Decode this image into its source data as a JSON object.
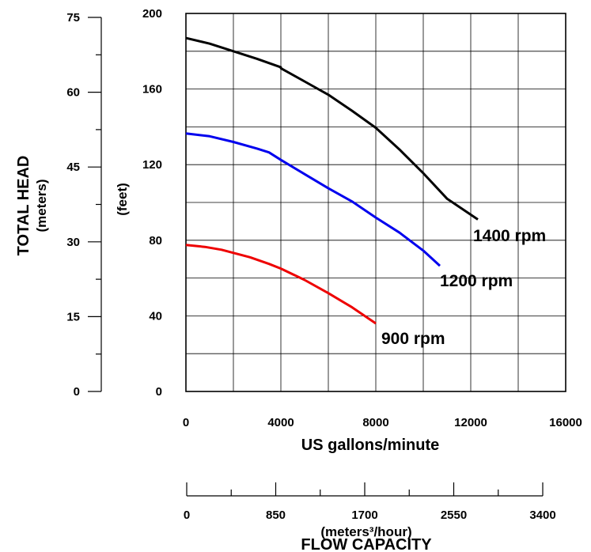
{
  "chart_data": {
    "type": "line",
    "title": "",
    "xlabel": "US gallons/minute",
    "xlim": [
      0,
      16000
    ],
    "x_ticks": [
      "0",
      "4000",
      "8000",
      "12000",
      "16000"
    ],
    "ylabel": "(feet)",
    "ylim": [
      0,
      200
    ],
    "y_ticks": [
      "0",
      "40",
      "80",
      "120",
      "160",
      "200"
    ],
    "secondary_y": {
      "label_line1": "TOTAL HEAD",
      "label_line2": "(meters)",
      "ticks": [
        "0",
        "15",
        "30",
        "45",
        "60",
        "75"
      ],
      "range": [
        0,
        75
      ]
    },
    "secondary_x": {
      "label_line1": "(meters³/hour)",
      "label_line2": "FLOW CAPACITY",
      "ticks": [
        "0",
        "850",
        "1700",
        "2550",
        "3400"
      ],
      "range": [
        0,
        3400
      ]
    },
    "grid": true,
    "series": [
      {
        "name": "1400 rpm",
        "color": "#000000",
        "points": [
          [
            0,
            187
          ],
          [
            1000,
            184
          ],
          [
            2000,
            180
          ],
          [
            3000,
            176
          ],
          [
            4000,
            171.5
          ],
          [
            4000,
            171
          ],
          [
            5000,
            164
          ],
          [
            6000,
            157
          ],
          [
            7000,
            148.5
          ],
          [
            8000,
            139.5
          ],
          [
            9000,
            128
          ],
          [
            10000,
            115.5
          ],
          [
            11000,
            102
          ],
          [
            12300,
            91
          ]
        ]
      },
      {
        "name": "1200 rpm",
        "color": "#0000ee",
        "points": [
          [
            0,
            136.5
          ],
          [
            1000,
            135
          ],
          [
            2000,
            132
          ],
          [
            3000,
            128.5
          ],
          [
            3500,
            126.5
          ],
          [
            4000,
            122.5
          ],
          [
            5000,
            115
          ],
          [
            6000,
            107.5
          ],
          [
            7000,
            100.5
          ],
          [
            8000,
            92
          ],
          [
            9000,
            84
          ],
          [
            10000,
            74.5
          ],
          [
            10700,
            66.5
          ]
        ]
      },
      {
        "name": "900 rpm",
        "color": "#ee0000",
        "points": [
          [
            0,
            77.5
          ],
          [
            800,
            76.5
          ],
          [
            1500,
            75
          ],
          [
            2700,
            71
          ],
          [
            3500,
            67.5
          ],
          [
            4000,
            65
          ],
          [
            5000,
            59
          ],
          [
            6000,
            52
          ],
          [
            7000,
            44.5
          ],
          [
            8000,
            36
          ]
        ]
      }
    ]
  }
}
